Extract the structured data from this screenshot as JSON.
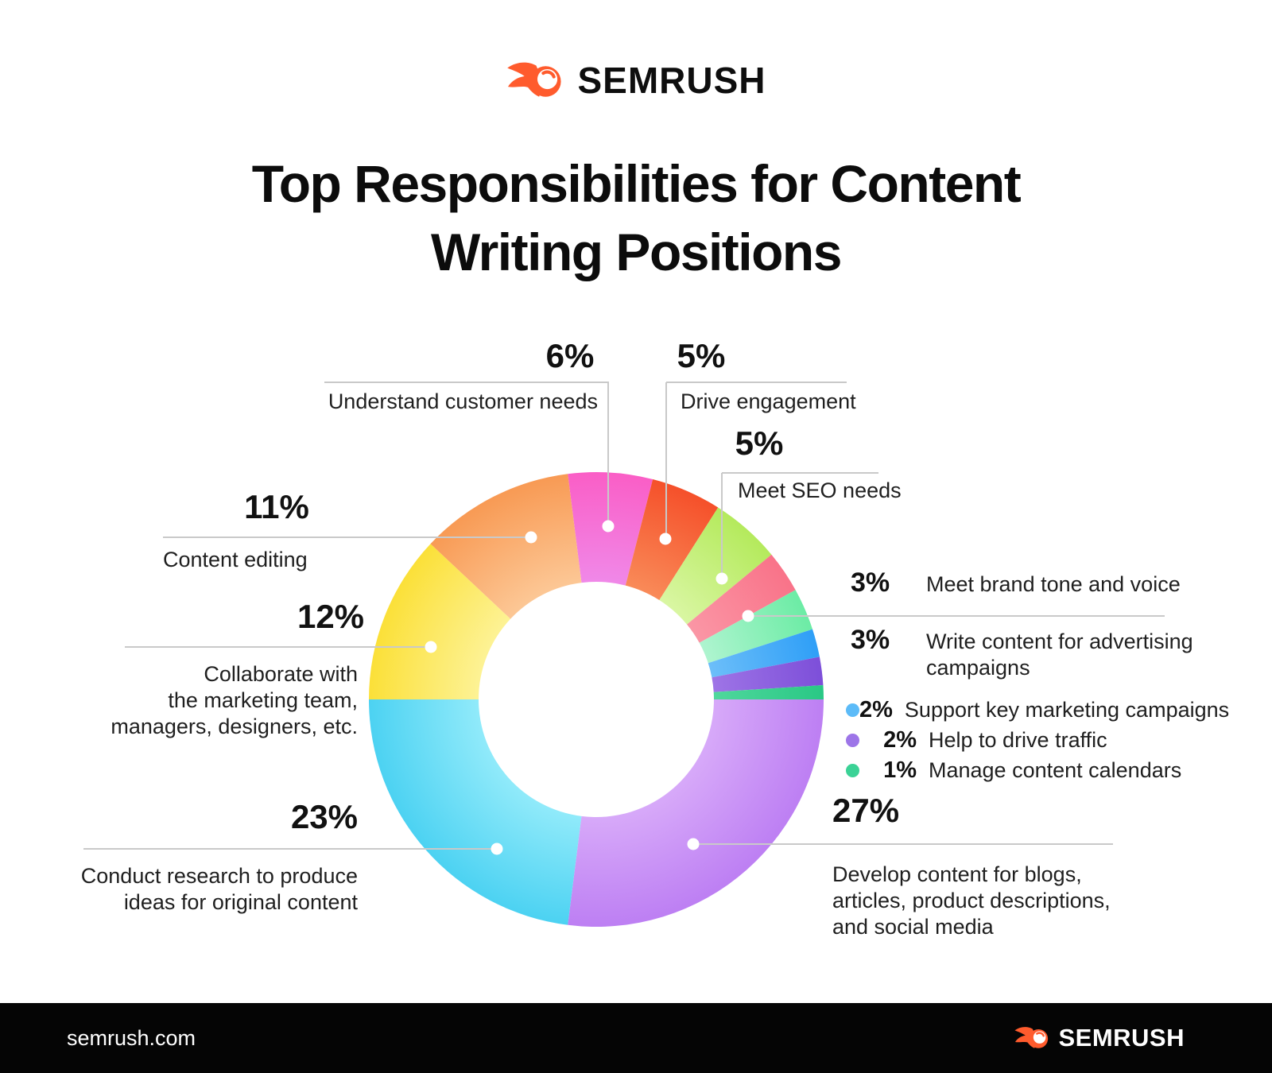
{
  "brand": {
    "name": "SEMRUSH",
    "site": "semrush.com",
    "accent": "#ff5b2d"
  },
  "title": {
    "line1": "Top Responsibilities for Content",
    "line2": "Writing Positions"
  },
  "chart_data": {
    "type": "pie",
    "variant": "donut",
    "title": "Top Responsibilities for Content Writing Positions",
    "start_angle_deg": -7.2,
    "direction": "clockwise",
    "segments": [
      {
        "label": "Understand customer needs",
        "value": 6,
        "pct_label": "6%",
        "color_outer": "#fa5ec6",
        "color_inner": "#f088e8"
      },
      {
        "label": "Drive engagement",
        "value": 5,
        "pct_label": "5%",
        "color_outer": "#f5502a",
        "color_inner": "#f98a58"
      },
      {
        "label": "Meet SEO needs",
        "value": 5,
        "pct_label": "5%",
        "color_outer": "#b4ea5c",
        "color_inner": "#d9f6a2"
      },
      {
        "label": "Meet brand tone and voice",
        "value": 3,
        "pct_label": "3%",
        "color_outer": "#f97389",
        "color_inner": "#fa96a5"
      },
      {
        "label": "Write content for advertising campaigns",
        "value": 3,
        "pct_label": "3%",
        "color_outer": "#6ceca5",
        "color_inner": "#aef4cf"
      },
      {
        "label": "Support key marketing campaigns",
        "value": 2,
        "pct_label": "2%",
        "color_outer": "#2f9ff7",
        "color_inner": "#6cbef9"
      },
      {
        "label": "Help to drive traffic",
        "value": 2,
        "pct_label": "2%",
        "color_outer": "#7d4fd9",
        "color_inner": "#9e74e6"
      },
      {
        "label": "Manage content calendars",
        "value": 1,
        "pct_label": "1%",
        "color_outer": "#29c885",
        "color_inner": "#4fd79c"
      },
      {
        "label": "Develop content for blogs, articles, product descriptions, and social media",
        "value": 27,
        "pct_label": "27%",
        "color_outer": "#bd7ff3",
        "color_inner": "#d7a9f9"
      },
      {
        "label": "Conduct research to produce ideas for original content",
        "value": 23,
        "pct_label": "23%",
        "color_outer": "#4cd2f2",
        "color_inner": "#90eafa"
      },
      {
        "label": "Collaborate with the marketing team, managers, designers, etc.",
        "value": 12,
        "pct_label": "12%",
        "color_outer": "#fbe038",
        "color_inner": "#fdf294"
      },
      {
        "label": "Content editing",
        "value": 11,
        "pct_label": "11%",
        "color_outer": "#f89a54",
        "color_inner": "#fcc795"
      }
    ]
  },
  "callouts": {
    "understand": {
      "pct": "6%",
      "text": "Understand customer needs"
    },
    "drive": {
      "pct": "5%",
      "text": "Drive engagement"
    },
    "seo": {
      "pct": "5%",
      "text": "Meet SEO needs"
    },
    "brand_tone": {
      "pct": "3%",
      "text": "Meet brand tone and voice"
    },
    "advertising": {
      "pct": "3%",
      "text": "Write content for advertising\ncampaigns"
    },
    "support": {
      "pct": "2%",
      "text": "Support key marketing campaigns",
      "dot": "#5cbbf8"
    },
    "traffic": {
      "pct": "2%",
      "text": "Help to drive traffic",
      "dot": "#9d75e8"
    },
    "calendars": {
      "pct": "1%",
      "text": "Manage content calendars",
      "dot": "#3bd296"
    },
    "develop": {
      "pct": "27%",
      "text": "Develop content for blogs,\narticles, product descriptions,\nand social media"
    },
    "research": {
      "pct": "23%",
      "text": "Conduct research to produce\nideas for original content"
    },
    "collaborate": {
      "pct": "12%",
      "text": "Collaborate with\nthe marketing team,\nmanagers, designers, etc."
    },
    "editing": {
      "pct": "11%",
      "text": "Content editing"
    }
  }
}
